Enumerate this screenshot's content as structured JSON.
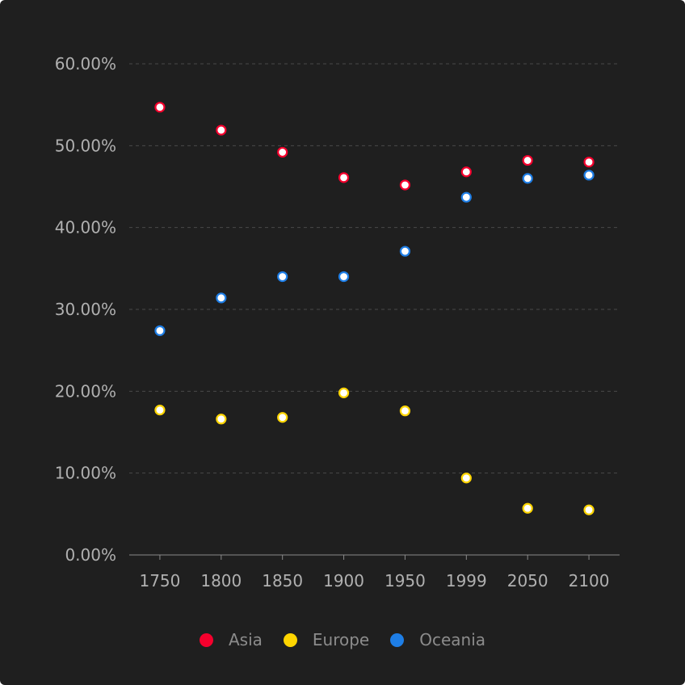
{
  "chart_data": {
    "type": "scatter",
    "title": "",
    "xlabel": "",
    "ylabel": "",
    "categories": [
      "1750",
      "1800",
      "1850",
      "1900",
      "1950",
      "1999",
      "2050",
      "2100"
    ],
    "y_ticks": [
      "0.00%",
      "10.00%",
      "20.00%",
      "30.00%",
      "40.00%",
      "50.00%",
      "60.00%"
    ],
    "ylim": [
      0,
      60
    ],
    "y_unit": "%",
    "grid": true,
    "legend_position": "bottom-center",
    "series": [
      {
        "name": "Asia",
        "color": "#f5002d",
        "values": [
          54.7,
          51.9,
          49.2,
          46.1,
          45.2,
          46.8,
          48.2,
          48.0
        ]
      },
      {
        "name": "Europe",
        "color": "#ffd500",
        "values": [
          17.7,
          16.6,
          16.8,
          19.8,
          17.6,
          9.4,
          5.7,
          5.5
        ]
      },
      {
        "name": "Oceania",
        "color": "#1e7ee6",
        "values": [
          27.4,
          31.4,
          34.0,
          34.0,
          37.1,
          43.7,
          46.0,
          46.4
        ]
      }
    ]
  }
}
